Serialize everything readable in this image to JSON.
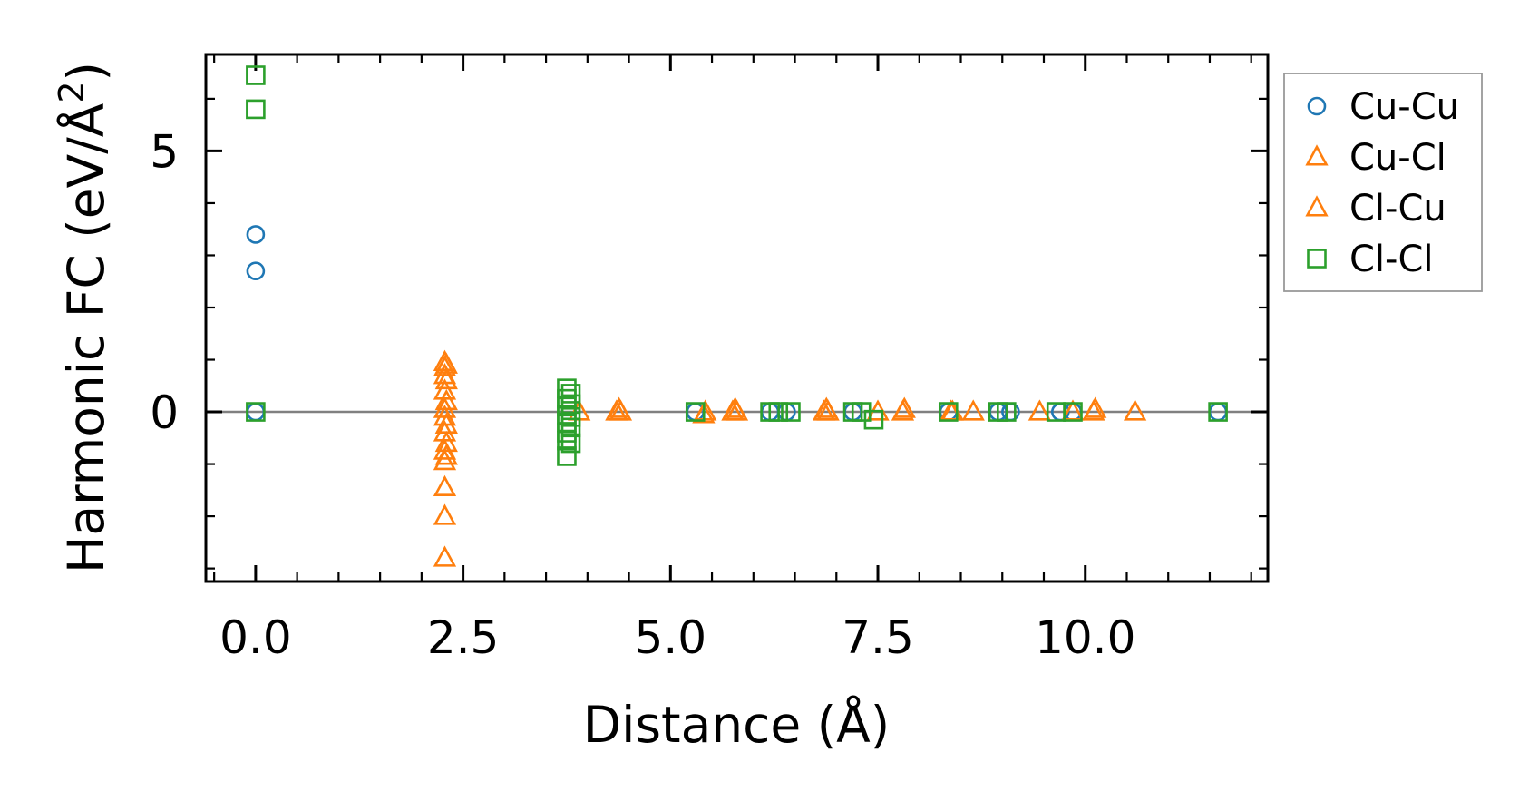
{
  "chart_data": {
    "type": "scatter",
    "xlabel": "Distance (Å)",
    "ylabel_main": "Harmonic FC (eV/Å",
    "ylabel_sup": "2",
    "ylabel_close": ")",
    "xlim": [
      -0.6,
      12.2
    ],
    "ylim": [
      -3.25,
      6.85
    ],
    "x_ticks": [
      0.0,
      2.5,
      5.0,
      7.5,
      10.0
    ],
    "x_tick_labels": [
      "0.0",
      "2.5",
      "5.0",
      "7.5",
      "10.0"
    ],
    "y_ticks": [
      0,
      5
    ],
    "y_tick_labels": [
      "0",
      "5"
    ],
    "zero_line": true,
    "legend_position": "outside-right",
    "series": [
      {
        "name": "Cu-Cu",
        "marker": "circle",
        "color": "#1f77b4",
        "points": [
          [
            0,
            3.4
          ],
          [
            0,
            2.7
          ],
          [
            0,
            0
          ],
          [
            5.3,
            0
          ],
          [
            6.2,
            0
          ],
          [
            6.4,
            0
          ],
          [
            7.2,
            0
          ],
          [
            8.35,
            0
          ],
          [
            8.95,
            0
          ],
          [
            9.1,
            0
          ],
          [
            9.7,
            0
          ],
          [
            9.85,
            0
          ],
          [
            11.6,
            0
          ]
        ]
      },
      {
        "name": "Cu-Cl",
        "marker": "triangle",
        "color": "#ff7f0e",
        "points": [
          [
            2.28,
            0.95
          ],
          [
            2.28,
            0.85
          ],
          [
            2.28,
            0.7
          ],
          [
            2.28,
            0.4
          ],
          [
            2.28,
            0.05
          ],
          [
            2.28,
            -0.1
          ],
          [
            2.28,
            -0.4
          ],
          [
            2.28,
            -0.75
          ],
          [
            2.28,
            -0.95
          ],
          [
            2.28,
            -1.45
          ],
          [
            2.28,
            -2.0
          ],
          [
            2.28,
            -2.8
          ],
          [
            3.9,
            0
          ],
          [
            4.35,
            0
          ],
          [
            4.4,
            0
          ],
          [
            5.4,
            -0.05
          ],
          [
            5.75,
            0
          ],
          [
            5.8,
            0
          ],
          [
            6.85,
            0
          ],
          [
            6.9,
            0
          ],
          [
            7.5,
            0
          ],
          [
            7.8,
            0
          ],
          [
            8.4,
            0
          ],
          [
            8.65,
            0
          ],
          [
            9.45,
            0
          ],
          [
            9.85,
            0
          ],
          [
            10.1,
            0
          ],
          [
            10.6,
            0
          ]
        ]
      },
      {
        "name": "Cl-Cu",
        "marker": "triangle",
        "color": "#ff7f0e",
        "points": [
          [
            2.3,
            0.9
          ],
          [
            2.3,
            0.6
          ],
          [
            2.3,
            0.2
          ],
          [
            2.3,
            -0.25
          ],
          [
            2.3,
            -0.6
          ],
          [
            2.3,
            -0.85
          ],
          [
            4.38,
            0.05
          ],
          [
            5.42,
            0
          ],
          [
            5.78,
            0.05
          ],
          [
            6.88,
            0.05
          ],
          [
            7.82,
            0.05
          ],
          [
            8.38,
            0
          ],
          [
            10.12,
            0.05
          ]
        ]
      },
      {
        "name": "Cl-Cl",
        "marker": "square",
        "color": "#2ca02c",
        "points": [
          [
            0,
            6.45
          ],
          [
            0,
            5.8
          ],
          [
            0,
            0
          ],
          [
            3.75,
            0.45
          ],
          [
            3.75,
            0.25
          ],
          [
            3.75,
            0.1
          ],
          [
            3.75,
            -0.05
          ],
          [
            3.75,
            -0.2
          ],
          [
            3.75,
            -0.4
          ],
          [
            3.75,
            -0.55
          ],
          [
            3.75,
            -0.85
          ],
          [
            3.8,
            0.35
          ],
          [
            3.8,
            0.15
          ],
          [
            3.8,
            -0.1
          ],
          [
            3.8,
            -0.3
          ],
          [
            3.8,
            -0.6
          ],
          [
            5.3,
            0
          ],
          [
            6.2,
            0
          ],
          [
            6.3,
            0
          ],
          [
            6.45,
            0
          ],
          [
            7.2,
            0
          ],
          [
            7.3,
            0
          ],
          [
            7.45,
            -0.15
          ],
          [
            8.35,
            0
          ],
          [
            8.95,
            0
          ],
          [
            9.05,
            0
          ],
          [
            9.65,
            0
          ],
          [
            9.85,
            0
          ],
          [
            11.6,
            0
          ]
        ]
      }
    ]
  }
}
